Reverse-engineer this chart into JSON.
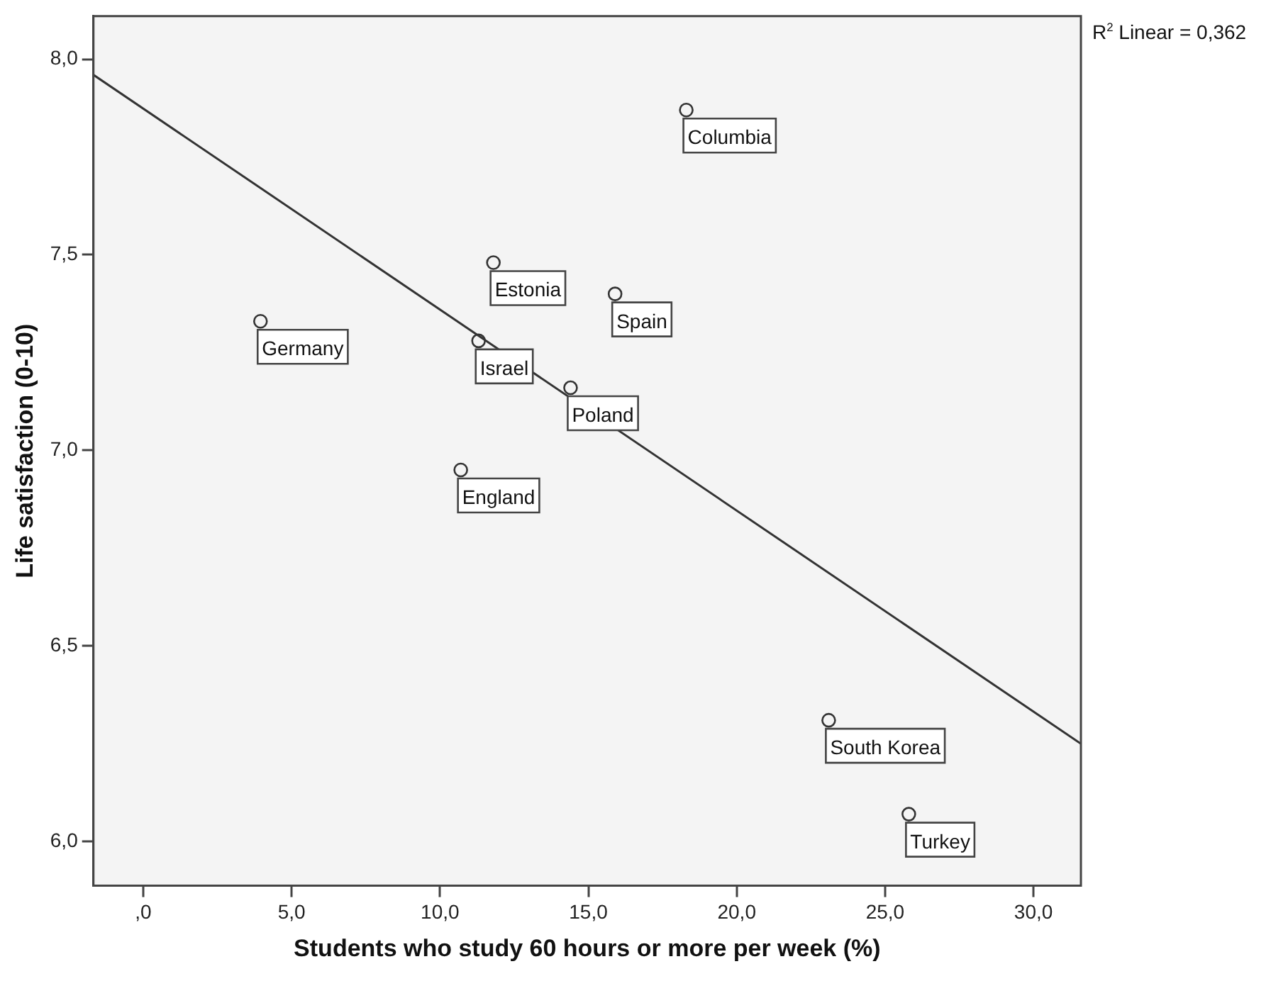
{
  "chart_data": {
    "type": "scatter",
    "xlabel": "Students who study 60 hours or more per week (%)",
    "ylabel": "Life satisfaction (0-10)",
    "xlim": [
      -1.68,
      31.6
    ],
    "ylim": [
      5.887,
      8.11
    ],
    "xticks": [
      {
        "value": 0,
        "label": ",0"
      },
      {
        "value": 5,
        "label": "5,0"
      },
      {
        "value": 10,
        "label": "10,0"
      },
      {
        "value": 15,
        "label": "15,0"
      },
      {
        "value": 20,
        "label": "20,0"
      },
      {
        "value": 25,
        "label": "25,0"
      },
      {
        "value": 30,
        "label": "30,0"
      }
    ],
    "yticks": [
      {
        "value": 6,
        "label": "6,0"
      },
      {
        "value": 6.5,
        "label": "6,5"
      },
      {
        "value": 7,
        "label": "7,0"
      },
      {
        "value": 7.5,
        "label": "7,5"
      },
      {
        "value": 8,
        "label": "8,0"
      }
    ],
    "grid": false,
    "legend": false,
    "marker": "circle",
    "series": [
      {
        "color": "#333333",
        "x": [
          18.3,
          11.8,
          15.9,
          3.95,
          11.3,
          14.4,
          10.7,
          23.1,
          25.8
        ],
        "values": [
          7.87,
          7.48,
          7.4,
          7.33,
          7.28,
          7.16,
          6.95,
          6.31,
          6.07
        ]
      },
      {
        "type": "line",
        "color": "#333333",
        "marker": "none",
        "x": [
          -1.68,
          31.6
        ],
        "values": [
          7.96,
          6.25
        ]
      }
    ],
    "annotations": [
      {
        "text": "Columbia",
        "x": 18.3,
        "y": 7.87
      },
      {
        "text": "Estonia",
        "x": 11.8,
        "y": 7.48
      },
      {
        "text": "Spain",
        "x": 15.9,
        "y": 7.4
      },
      {
        "text": "Germany",
        "x": 3.95,
        "y": 7.33
      },
      {
        "text": "Israel",
        "x": 11.3,
        "y": 7.28
      },
      {
        "text": "Poland",
        "x": 14.4,
        "y": 7.16
      },
      {
        "text": "England",
        "x": 10.7,
        "y": 6.95
      },
      {
        "text": "South Korea",
        "x": 23.1,
        "y": 6.31
      },
      {
        "text": "Turkey",
        "x": 25.8,
        "y": 6.07
      },
      "R$^{2}$ Linear = 0,362"
    ]
  }
}
